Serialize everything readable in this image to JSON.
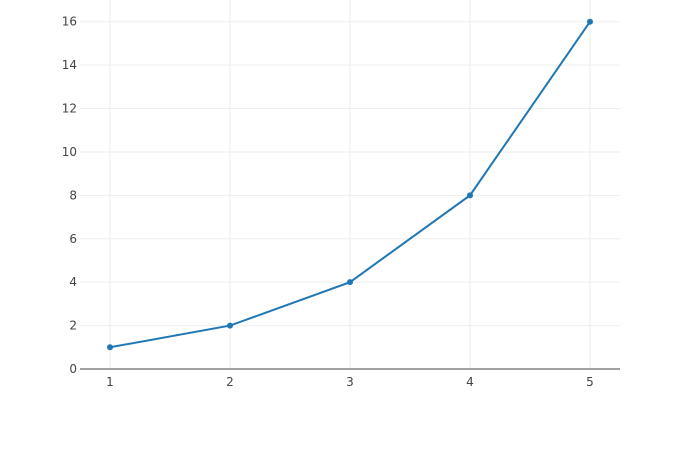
{
  "chart_data": {
    "type": "line",
    "title": "",
    "xlabel": "",
    "ylabel": "",
    "x": [
      1,
      2,
      3,
      4,
      5
    ],
    "series": [
      {
        "values": [
          1,
          2,
          4,
          8,
          16
        ],
        "color": "#1f77b4",
        "mode": "lines+markers"
      }
    ],
    "xlim": [
      0.75,
      5.25
    ],
    "ylim": [
      0,
      17
    ],
    "xticks": [
      1,
      2,
      3,
      4,
      5
    ],
    "yticks": [
      0,
      2,
      4,
      6,
      8,
      10,
      12,
      14,
      16
    ],
    "grid": true,
    "legend": "none"
  }
}
